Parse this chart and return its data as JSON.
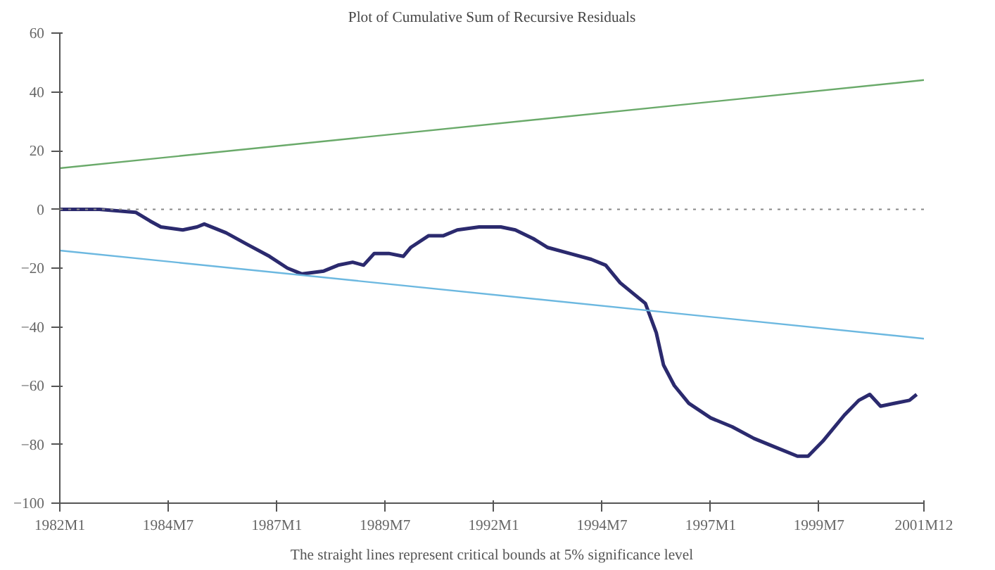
{
  "chart_data": {
    "type": "line",
    "title": "Plot of Cumulative Sum of Recursive Residuals",
    "annotations": [
      "The straight lines represent critical bounds at 5% significance level"
    ],
    "xlim": [
      "1982-01",
      "2001-12"
    ],
    "ylim": [
      -100,
      60
    ],
    "xticks": [
      {
        "value": "1982-01",
        "label": "1982M1"
      },
      {
        "value": "1984-07",
        "label": "1984M7"
      },
      {
        "value": "1987-01",
        "label": "1987M1"
      },
      {
        "value": "1989-07",
        "label": "1989M7"
      },
      {
        "value": "1992-01",
        "label": "1992M1"
      },
      {
        "value": "1994-07",
        "label": "1994M7"
      },
      {
        "value": "1997-01",
        "label": "1997M1"
      },
      {
        "value": "1999-07",
        "label": "1999M7"
      },
      {
        "value": "2001-12",
        "label": "2001M12"
      }
    ],
    "yticks": [
      -100,
      -80,
      -60,
      -40,
      -20,
      0,
      20,
      40,
      60
    ],
    "grid": false,
    "line_style": "solid",
    "marker": "none",
    "ref_lines": [
      {
        "axis": "y",
        "value": 0,
        "color": "#888888",
        "line_style": "dotted"
      }
    ],
    "series": [
      {
        "color": "#2b2a6e",
        "x": [
          "1982-01",
          "1982-12",
          "1983-10",
          "1984-02",
          "1984-05",
          "1984-11",
          "1985-03",
          "1985-05",
          "1985-11",
          "1986-05",
          "1986-11",
          "1987-04",
          "1987-08",
          "1988-02",
          "1988-06",
          "1988-10",
          "1989-01",
          "1989-04",
          "1989-08",
          "1989-12",
          "1990-02",
          "1990-07",
          "1990-11",
          "1991-03",
          "1991-09",
          "1992-03",
          "1992-07",
          "1992-12",
          "1993-04",
          "1993-10",
          "1994-04",
          "1994-08",
          "1994-12",
          "1995-04",
          "1995-07",
          "1995-10",
          "1995-12",
          "1996-03",
          "1996-07",
          "1997-01",
          "1997-07",
          "1998-01",
          "1998-07",
          "1999-01",
          "1999-04",
          "1999-08",
          "2000-02",
          "2000-06",
          "2000-09",
          "2000-12",
          "2001-04",
          "2001-08",
          "2001-10"
        ],
        "values": [
          0,
          0,
          -1,
          -4,
          -6,
          -7,
          -6,
          -5,
          -8,
          -12,
          -16,
          -20,
          -22,
          -21,
          -19,
          -18,
          -19,
          -15,
          -15,
          -16,
          -13,
          -9,
          -9,
          -7,
          -6,
          -6,
          -7,
          -10,
          -13,
          -15,
          -17,
          -19,
          -25,
          -29,
          -32,
          -42,
          -53,
          -60,
          -66,
          -71,
          -74,
          -78,
          -81,
          -84,
          -84,
          -79,
          -70,
          -65,
          -63,
          -67,
          -66,
          -65,
          -63
        ]
      },
      {
        "color": "#6aaa6a",
        "x": [
          "1982-01",
          "2001-12"
        ],
        "values": [
          14,
          44
        ]
      },
      {
        "color": "#6cb8e0",
        "x": [
          "1982-01",
          "2001-12"
        ],
        "values": [
          -14,
          -44
        ]
      }
    ]
  }
}
